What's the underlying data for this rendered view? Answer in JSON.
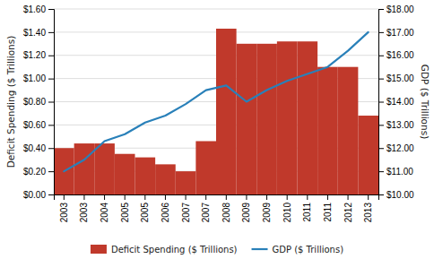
{
  "chart_data": {
    "type": "bar",
    "categories": [
      "2003",
      "2003",
      "2004",
      "2005",
      "2005",
      "2006",
      "2007",
      "2007",
      "2008",
      "2009",
      "2009",
      "2010",
      "2011",
      "2011",
      "2012",
      "2013"
    ],
    "series": [
      {
        "name": "Deficit Spending ($ Trillions)",
        "type": "bar",
        "color": "#c0392b",
        "values": [
          0.4,
          0.44,
          0.44,
          0.35,
          0.32,
          0.26,
          0.2,
          0.46,
          1.43,
          1.3,
          1.3,
          1.32,
          1.32,
          1.1,
          1.1,
          0.68
        ]
      },
      {
        "name": "GDP ($ Trillions)",
        "type": "line",
        "color": "#2980b9",
        "axis": "y2",
        "values": [
          11.0,
          11.5,
          12.3,
          12.6,
          13.1,
          13.4,
          13.9,
          14.5,
          14.7,
          14.0,
          14.5,
          14.9,
          15.2,
          15.5,
          16.2,
          17.0
        ]
      }
    ],
    "y_label": "Deficit Spending ($ Trillions)",
    "y2_label": "GDP ($ Trillions)",
    "ylim": [
      0.0,
      1.6
    ],
    "yticks": [
      {
        "value": 0.0,
        "label": "$0.00"
      },
      {
        "value": 0.2,
        "label": "$0.20"
      },
      {
        "value": 0.4,
        "label": "$0.40"
      },
      {
        "value": 0.6,
        "label": "$0.60"
      },
      {
        "value": 0.8,
        "label": "$0.80"
      },
      {
        "value": 1.0,
        "label": "$1.00"
      },
      {
        "value": 1.2,
        "label": "$1.20"
      },
      {
        "value": 1.4,
        "label": "$1.40"
      },
      {
        "value": 1.6,
        "label": "$1.60"
      }
    ],
    "y2lim": [
      10.0,
      18.0
    ],
    "y2ticks": [
      {
        "value": 10.0,
        "label": "$10.00"
      },
      {
        "value": 11.0,
        "label": "$11.00"
      },
      {
        "value": 12.0,
        "label": "$12.00"
      },
      {
        "value": 13.0,
        "label": "$13.00"
      },
      {
        "value": 14.0,
        "label": "$14.00"
      },
      {
        "value": 15.0,
        "label": "$15.00"
      },
      {
        "value": 16.0,
        "label": "$16.00"
      },
      {
        "value": 17.0,
        "label": "$17.00"
      },
      {
        "value": 18.0,
        "label": "$18.00"
      }
    ],
    "grid": true,
    "legend": "bottom"
  }
}
